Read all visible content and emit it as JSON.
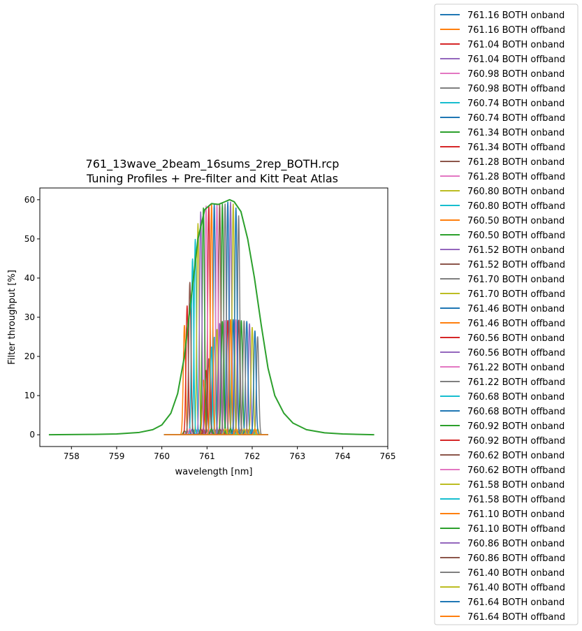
{
  "chart_data": {
    "type": "line",
    "title": "761_13wave_2beam_16sums_2rep_BOTH.rcp",
    "subtitle": "Tuning Profiles + Pre-filter and Kitt Peat Atlas",
    "xlabel": "wavelength [nm]",
    "ylabel": "Filter throughput [%]",
    "xlim": [
      757.3,
      765.0
    ],
    "ylim": [
      -3,
      63
    ],
    "xticks": [
      758,
      759,
      760,
      761,
      762,
      763,
      764,
      765
    ],
    "yticks": [
      0,
      10,
      20,
      30,
      40,
      50,
      60
    ],
    "grid": false,
    "legend_position": "outside-right",
    "palette": [
      "#1f77b4",
      "#ff7f0e",
      "#d62728",
      "#9467bd",
      "#e377c2",
      "#7f7f7f",
      "#17becf",
      "#1f77b4",
      "#2ca02c",
      "#d62728",
      "#8c564b",
      "#e377c2",
      "#bcbd22",
      "#17becf",
      "#ff7f0e",
      "#2ca02c",
      "#9467bd",
      "#8c564b",
      "#7f7f7f",
      "#bcbd22",
      "#1f77b4",
      "#ff7f0e",
      "#d62728",
      "#9467bd",
      "#e377c2",
      "#7f7f7f",
      "#17becf",
      "#1f77b4",
      "#2ca02c",
      "#d62728",
      "#8c564b",
      "#e377c2",
      "#bcbd22",
      "#17becf",
      "#ff7f0e",
      "#2ca02c",
      "#9467bd",
      "#8c564b",
      "#7f7f7f",
      "#bcbd22",
      "#1f77b4",
      "#ff7f0e"
    ],
    "series": [
      {
        "name": "761.16 BOTH onband",
        "center": 761.16,
        "peak": 59
      },
      {
        "name": "761.16 BOTH offband",
        "center": 761.16,
        "peak": 1.5
      },
      {
        "name": "761.04 BOTH onband",
        "center": 761.04,
        "peak": 58.5
      },
      {
        "name": "761.04 BOTH offband",
        "center": 761.04,
        "peak": 1.5
      },
      {
        "name": "760.98 BOTH onband",
        "center": 760.98,
        "peak": 58.5
      },
      {
        "name": "760.98 BOTH offband",
        "center": 760.98,
        "peak": 1.5
      },
      {
        "name": "760.74 BOTH onband",
        "center": 760.74,
        "peak": 50
      },
      {
        "name": "760.74 BOTH offband",
        "center": 760.74,
        "peak": 1.5
      },
      {
        "name": "761.34 BOTH onband",
        "center": 761.34,
        "peak": 59
      },
      {
        "name": "761.34 BOTH offband",
        "center": 761.34,
        "peak": 1.5
      },
      {
        "name": "761.28 BOTH onband",
        "center": 761.28,
        "peak": 59
      },
      {
        "name": "761.28 BOTH offband",
        "center": 761.28,
        "peak": 1.5
      },
      {
        "name": "760.80 BOTH onband",
        "center": 760.8,
        "peak": 54
      },
      {
        "name": "760.80 BOTH offband",
        "center": 760.8,
        "peak": 1.5
      },
      {
        "name": "760.50 BOTH onband",
        "center": 760.5,
        "peak": 28
      },
      {
        "name": "760.50 BOTH offband",
        "center": 760.5,
        "peak": 1.0
      },
      {
        "name": "761.52 BOTH onband",
        "center": 761.52,
        "peak": 59.5
      },
      {
        "name": "761.52 BOTH offband",
        "center": 761.52,
        "peak": 1.5
      },
      {
        "name": "761.70 BOTH onband",
        "center": 761.7,
        "peak": 56
      },
      {
        "name": "761.70 BOTH offband",
        "center": 761.7,
        "peak": 1.5
      },
      {
        "name": "761.46 BOTH onband",
        "center": 761.46,
        "peak": 59.5
      },
      {
        "name": "761.46 BOTH offband",
        "center": 761.46,
        "peak": 1.5
      },
      {
        "name": "760.56 BOTH onband",
        "center": 760.56,
        "peak": 33
      },
      {
        "name": "760.56 BOTH offband",
        "center": 760.56,
        "peak": 1.0
      },
      {
        "name": "761.22 BOTH onband",
        "center": 761.22,
        "peak": 59
      },
      {
        "name": "761.22 BOTH offband",
        "center": 761.22,
        "peak": 1.5
      },
      {
        "name": "760.68 BOTH onband",
        "center": 760.68,
        "peak": 45
      },
      {
        "name": "760.68 BOTH offband",
        "center": 760.68,
        "peak": 1.5
      },
      {
        "name": "760.92 BOTH onband",
        "center": 760.92,
        "peak": 58
      },
      {
        "name": "760.92 BOTH offband",
        "center": 760.92,
        "peak": 1.5
      },
      {
        "name": "760.62 BOTH onband",
        "center": 760.62,
        "peak": 39
      },
      {
        "name": "760.62 BOTH offband",
        "center": 760.62,
        "peak": 1.5
      },
      {
        "name": "761.58 BOTH onband",
        "center": 761.58,
        "peak": 59
      },
      {
        "name": "761.58 BOTH offband",
        "center": 761.58,
        "peak": 1.5
      },
      {
        "name": "761.10 BOTH onband",
        "center": 761.1,
        "peak": 59
      },
      {
        "name": "761.10 BOTH offband",
        "center": 761.1,
        "peak": 1.5
      },
      {
        "name": "760.86 BOTH onband",
        "center": 760.86,
        "peak": 57
      },
      {
        "name": "760.86 BOTH offband",
        "center": 760.86,
        "peak": 1.5
      },
      {
        "name": "761.40 BOTH onband",
        "center": 761.4,
        "peak": 59
      },
      {
        "name": "761.40 BOTH offband",
        "center": 761.4,
        "peak": 1.5
      },
      {
        "name": "761.64 BOTH onband",
        "center": 761.64,
        "peak": 58
      },
      {
        "name": "761.64 BOTH offband",
        "center": 761.64,
        "peak": 1.5
      }
    ],
    "prefilter_curve": {
      "color": "#2ca02c",
      "x": [
        757.5,
        758.5,
        759.0,
        759.5,
        759.8,
        760.0,
        760.2,
        760.35,
        760.5,
        760.65,
        760.8,
        760.95,
        761.1,
        761.25,
        761.4,
        761.5,
        761.6,
        761.75,
        761.9,
        762.05,
        762.2,
        762.35,
        762.5,
        762.7,
        762.9,
        763.2,
        763.6,
        764.0,
        764.7
      ],
      "y": [
        0.0,
        0.1,
        0.2,
        0.6,
        1.3,
        2.5,
        5.5,
        10.5,
        20.0,
        35.0,
        50.0,
        57.5,
        59.0,
        58.8,
        59.5,
        60.0,
        59.5,
        57.0,
        50.0,
        40.0,
        28.0,
        17.0,
        10.0,
        5.5,
        3.0,
        1.3,
        0.5,
        0.2,
        0.0
      ]
    },
    "secondary_envelope": {
      "x": [
        760.5,
        760.8,
        761.0,
        761.3,
        761.6,
        761.9,
        762.1,
        762.3
      ],
      "y": [
        12.0,
        26.0,
        29.0,
        29.5,
        29.5,
        29.0,
        26.0,
        17.0
      ]
    }
  }
}
